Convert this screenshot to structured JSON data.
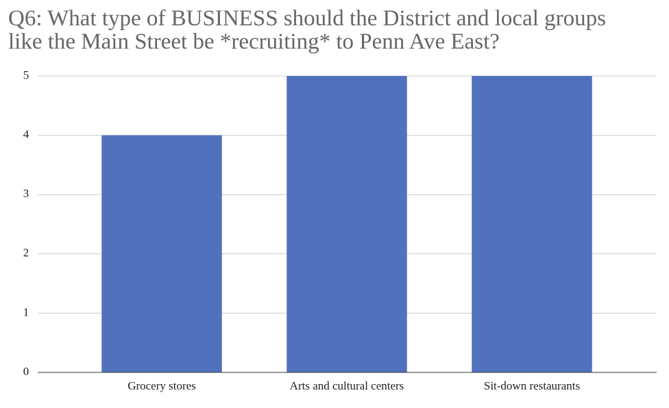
{
  "chart_data": {
    "type": "bar",
    "title": "Q6: What type of BUSINESS should the District and local groups like the Main Street be *recruiting* to Penn Ave East?",
    "categories": [
      "Grocery stores",
      "Arts and cultural centers",
      "Sit-down restaurants"
    ],
    "values": [
      4,
      5,
      5
    ],
    "color": "#5171be",
    "ylim": [
      0,
      5
    ],
    "yticks": [
      0,
      1,
      2,
      3,
      4,
      5
    ],
    "grid": true
  }
}
